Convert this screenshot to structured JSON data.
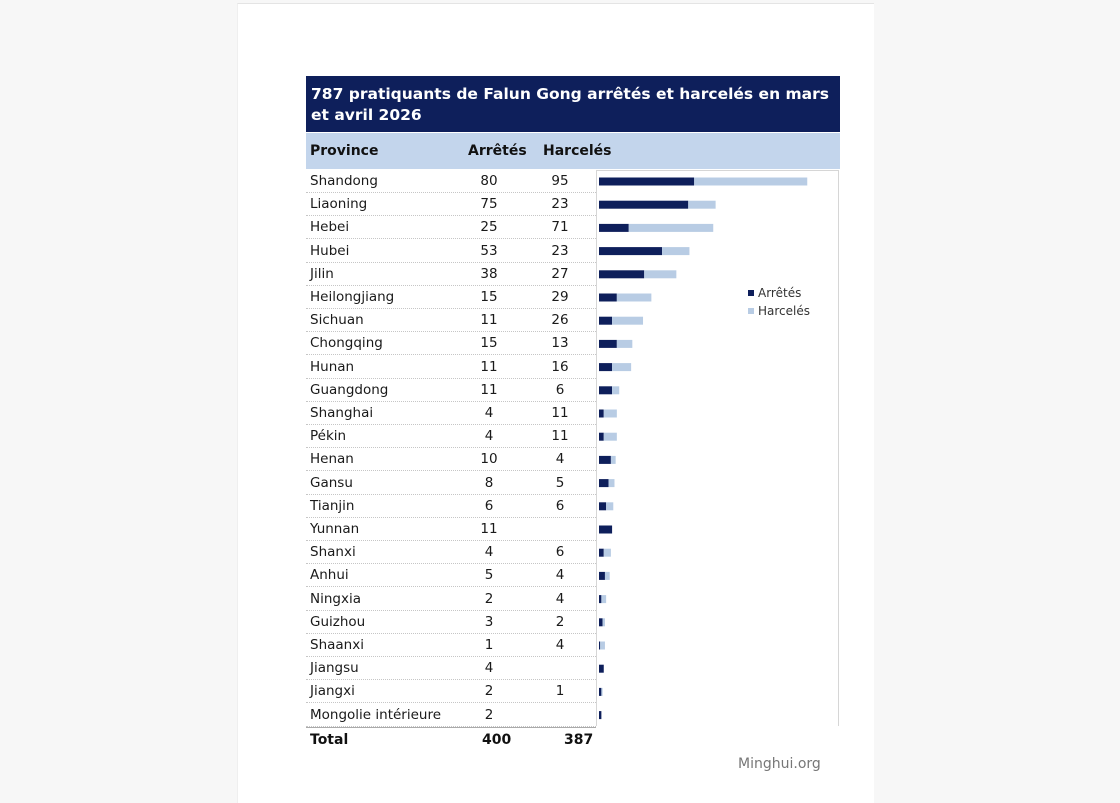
{
  "title": "787 pratiquants de Falun Gong arrêtés et harcelés en mars et avril 2026",
  "headers": {
    "province": "Province",
    "arretes": "Arrêtés",
    "harceles": "Harcelés"
  },
  "total": {
    "label": "Total",
    "arretes": "400",
    "harceles": "387"
  },
  "source": "Minghui.org",
  "colors": {
    "arretes": "#0e1f5b",
    "harceles": "#b8cce4",
    "title_bg": "#0e1f5b",
    "header_bg": "#c3d5ec"
  },
  "chart_data": {
    "type": "bar",
    "orientation": "horizontal",
    "stacked": true,
    "categories": [
      "Shandong",
      "Liaoning",
      "Hebei",
      "Hubei",
      "Jilin",
      "Heilongjiang",
      "Sichuan",
      "Chongqing",
      "Hunan",
      "Guangdong",
      "Shanghai",
      "Pékin",
      "Henan",
      "Gansu",
      "Tianjin",
      "Yunnan",
      "Shanxi",
      "Anhui",
      "Ningxia",
      "Guizhou",
      "Shaanxi",
      "Jiangsu",
      "Jiangxi",
      "Mongolie intérieure"
    ],
    "series": [
      {
        "name": "Arrêtés",
        "values": [
          80,
          75,
          25,
          53,
          38,
          15,
          11,
          15,
          11,
          11,
          4,
          4,
          10,
          8,
          6,
          11,
          4,
          5,
          2,
          3,
          1,
          4,
          2,
          2
        ]
      },
      {
        "name": "Harcelés",
        "values": [
          95,
          23,
          71,
          23,
          27,
          29,
          26,
          13,
          16,
          6,
          11,
          11,
          4,
          5,
          6,
          null,
          6,
          4,
          4,
          2,
          4,
          null,
          1,
          null
        ]
      }
    ],
    "legend_position": "right",
    "grid": false
  }
}
